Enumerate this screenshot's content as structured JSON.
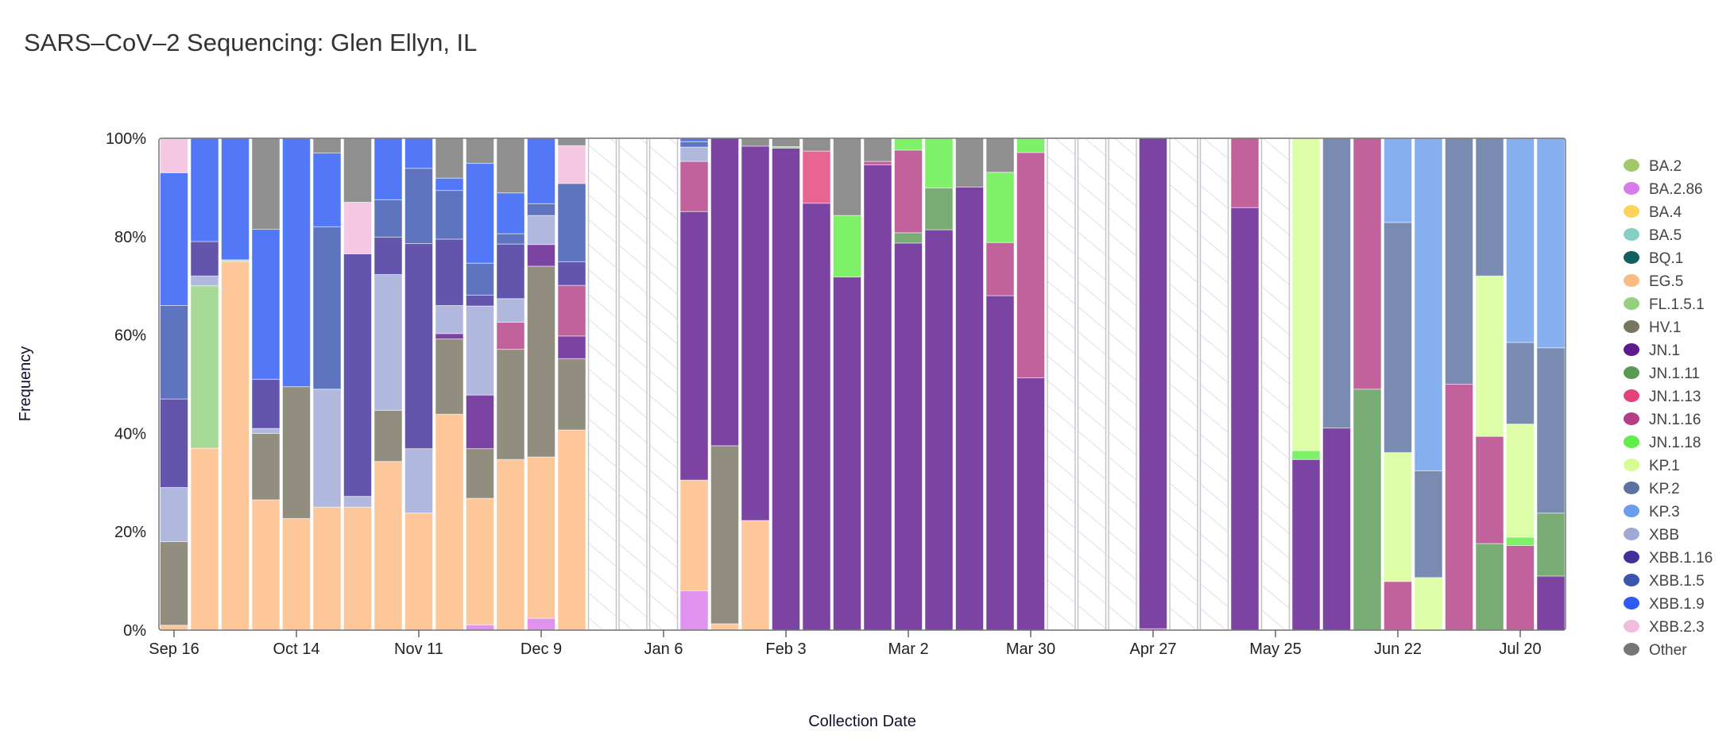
{
  "chart_data": {
    "type": "bar",
    "stacked": true,
    "title": "SARS–CoV–2 Sequencing: Glen Ellyn, IL",
    "xlabel": "Collection Date",
    "ylabel": "Frequency",
    "ylim": [
      0,
      100
    ],
    "yticks": [
      "0%",
      "20%",
      "40%",
      "60%",
      "80%",
      "100%"
    ],
    "xticks": [
      {
        "index": 0,
        "label": "Sep 16"
      },
      {
        "index": 4,
        "label": "Oct 14"
      },
      {
        "index": 8,
        "label": "Nov 11"
      },
      {
        "index": 12,
        "label": "Dec 9"
      },
      {
        "index": 16,
        "label": "Jan 6"
      },
      {
        "index": 20,
        "label": "Feb 3"
      },
      {
        "index": 24,
        "label": "Mar 2"
      },
      {
        "index": 28,
        "label": "Mar 30"
      },
      {
        "index": 32,
        "label": "Apr 27"
      },
      {
        "index": 36,
        "label": "May 25"
      },
      {
        "index": 40,
        "label": "Jun 22"
      },
      {
        "index": 44,
        "label": "Jul 20"
      }
    ],
    "legend_position": "right",
    "legend": [
      {
        "name": "BA.2",
        "color": "#a1c96a"
      },
      {
        "name": "BA.2.86",
        "color": "#d87aea"
      },
      {
        "name": "BA.4",
        "color": "#fdd35c"
      },
      {
        "name": "BA.5",
        "color": "#86cfc6"
      },
      {
        "name": "BQ.1",
        "color": "#135e5e"
      },
      {
        "name": "EG.5",
        "color": "#fdbb84"
      },
      {
        "name": "FL.1.5.1",
        "color": "#94d17f"
      },
      {
        "name": "HV.1",
        "color": "#7a7563"
      },
      {
        "name": "JN.1",
        "color": "#5e1a8e"
      },
      {
        "name": "JN.1.11",
        "color": "#5b9a56"
      },
      {
        "name": "JN.1.13",
        "color": "#e3437a"
      },
      {
        "name": "JN.1.16",
        "color": "#b43f87"
      },
      {
        "name": "JN.1.18",
        "color": "#62ee48"
      },
      {
        "name": "KP.1",
        "color": "#d6fd93"
      },
      {
        "name": "KP.2",
        "color": "#5d72a0"
      },
      {
        "name": "KP.3",
        "color": "#6b9ded"
      },
      {
        "name": "XBB",
        "color": "#9fa9d6"
      },
      {
        "name": "XBB.1.16",
        "color": "#41309a"
      },
      {
        "name": "XBB.1.5",
        "color": "#3b55b0"
      },
      {
        "name": "XBB.1.9",
        "color": "#2d5af5"
      },
      {
        "name": "XBB.2.3",
        "color": "#f2bcdc"
      },
      {
        "name": "Other",
        "color": "#767676"
      }
    ],
    "bars": [
      [
        [
          "EG.5",
          1
        ],
        [
          "HV.1",
          17
        ],
        [
          "XBB",
          11
        ],
        [
          "XBB.1.16",
          18
        ],
        [
          "XBB.1.5",
          19
        ],
        [
          "XBB.1.9",
          27
        ],
        [
          "XBB.2.3",
          7
        ]
      ],
      [
        [
          "EG.5",
          37
        ],
        [
          "FL.1.5.1",
          33
        ],
        [
          "XBB",
          2
        ],
        [
          "XBB.1.16",
          7
        ],
        [
          "XBB.1.9",
          21
        ]
      ],
      [
        [
          "EG.5",
          75
        ],
        [
          "FL.1.5.1",
          0.3
        ],
        [
          "XBB.1.9",
          24.7
        ]
      ],
      [
        [
          "EG.5",
          26.5
        ],
        [
          "HV.1",
          13.5
        ],
        [
          "XBB",
          1
        ],
        [
          "XBB.1.16",
          10
        ],
        [
          "XBB.1.9",
          30.5
        ],
        [
          "Other",
          18.5
        ]
      ],
      [
        [
          "EG.5",
          22.7
        ],
        [
          "HV.1",
          26.8
        ],
        [
          "XBB.1.9",
          50.5
        ]
      ],
      [
        [
          "EG.5",
          25
        ],
        [
          "XBB",
          24
        ],
        [
          "XBB.1.5",
          33
        ],
        [
          "XBB.1.9",
          15
        ],
        [
          "Other",
          3
        ]
      ],
      [
        [
          "EG.5",
          25
        ],
        [
          "XBB",
          2.2
        ],
        [
          "XBB.1.16",
          49.3
        ],
        [
          "XBB.2.3",
          10.5
        ],
        [
          "Other",
          13
        ]
      ],
      [
        [
          "EG.5",
          34.3
        ],
        [
          "HV.1",
          10.4
        ],
        [
          "XBB",
          27.6
        ],
        [
          "XBB.1.16",
          7.6
        ],
        [
          "XBB.1.5",
          7.6
        ],
        [
          "XBB.1.9",
          12.5
        ]
      ],
      [
        [
          "EG.5",
          23.8
        ],
        [
          "XBB",
          13.1
        ],
        [
          "XBB.1.16",
          41.7
        ],
        [
          "XBB.1.5",
          15.3
        ],
        [
          "XBB.1.9",
          6.1
        ]
      ],
      [
        [
          "EG.5",
          43.9
        ],
        [
          "HV.1",
          15.3
        ],
        [
          "JN.1",
          1.1
        ],
        [
          "XBB",
          5.7
        ],
        [
          "XBB.1.16",
          13.5
        ],
        [
          "XBB.1.5",
          9.9
        ],
        [
          "XBB.1.9",
          2.5
        ],
        [
          "Other",
          8.1
        ]
      ],
      [
        [
          "BA.2.86",
          1.1
        ],
        [
          "EG.5",
          25.7
        ],
        [
          "HV.1",
          10.1
        ],
        [
          "JN.1",
          10.9
        ],
        [
          "XBB",
          18.1
        ],
        [
          "XBB.1.16",
          2.2
        ],
        [
          "XBB.1.5",
          6.5
        ],
        [
          "XBB.1.9",
          20.3
        ],
        [
          "Other",
          5.1
        ]
      ],
      [
        [
          "EG.5",
          34.7
        ],
        [
          "HV.1",
          22.4
        ],
        [
          "JN.1.16",
          5.5
        ],
        [
          "XBB",
          4.8
        ],
        [
          "XBB.1.16",
          11.1
        ],
        [
          "XBB.1.5",
          2.1
        ],
        [
          "XBB.1.9",
          8.3
        ],
        [
          "Other",
          11.1
        ]
      ],
      [
        [
          "BA.2.86",
          2.4
        ],
        [
          "EG.5",
          32.8
        ],
        [
          "HV.1",
          38.8
        ],
        [
          "JN.1",
          4.4
        ],
        [
          "XBB",
          5.9
        ],
        [
          "XBB.1.5",
          2.4
        ],
        [
          "XBB.1.9",
          13.3
        ]
      ],
      [
        [
          "EG.5",
          40.7
        ],
        [
          "HV.1",
          14.5
        ],
        [
          "JN.1",
          4.6
        ],
        [
          "JN.1.16",
          10.3
        ],
        [
          "XBB.1.16",
          4.8
        ],
        [
          "XBB.1.5",
          15.9
        ],
        [
          "XBB.2.3",
          7.7
        ],
        [
          "Other",
          1.5
        ]
      ],
      null,
      null,
      null,
      [
        [
          "BA.2.86",
          8
        ],
        [
          "EG.5",
          22.5
        ],
        [
          "JN.1",
          54.6
        ],
        [
          "JN.1.16",
          10.2
        ],
        [
          "XBB",
          2.9
        ],
        [
          "XBB.1.5",
          1.1
        ],
        [
          "XBB.1.9",
          0.7
        ]
      ],
      [
        [
          "EG.5",
          1.3
        ],
        [
          "HV.1",
          36.2
        ],
        [
          "JN.1",
          62.5
        ]
      ],
      [
        [
          "EG.5",
          22.3
        ],
        [
          "JN.1",
          76.1
        ],
        [
          "Other",
          1.6
        ]
      ],
      [
        [
          "JN.1",
          98
        ],
        [
          "JN.1.18",
          0.3
        ],
        [
          "Other",
          1.7
        ]
      ],
      [
        [
          "JN.1",
          86.8
        ],
        [
          "JN.1.13",
          10.6
        ],
        [
          "Other",
          2.6
        ]
      ],
      [
        [
          "JN.1",
          71.8
        ],
        [
          "JN.1.18",
          12.5
        ],
        [
          "Other",
          15.7
        ]
      ],
      [
        [
          "JN.1",
          94.6
        ],
        [
          "JN.1.16",
          0.7
        ],
        [
          "Other",
          4.7
        ]
      ],
      [
        [
          "JN.1",
          78.7
        ],
        [
          "JN.1.11",
          2.1
        ],
        [
          "JN.1.16",
          16.8
        ],
        [
          "JN.1.18",
          2.4
        ]
      ],
      [
        [
          "JN.1",
          81.4
        ],
        [
          "JN.1.11",
          8.5
        ],
        [
          "JN.1.18",
          10.1
        ]
      ],
      [
        [
          "JN.1",
          90.1
        ],
        [
          "Other",
          9.9
        ]
      ],
      [
        [
          "JN.1",
          68
        ],
        [
          "JN.1.16",
          10.8
        ],
        [
          "JN.1.18",
          14.3
        ],
        [
          "Other",
          6.9
        ]
      ],
      [
        [
          "JN.1",
          51.3
        ],
        [
          "JN.1.16",
          45.8
        ],
        [
          "JN.1.18",
          2.9
        ]
      ],
      null,
      null,
      null,
      [
        [
          "JN.1.16",
          0.3
        ],
        [
          "JN.1",
          99.7
        ]
      ],
      null,
      null,
      [
        [
          "JN.1",
          85.9
        ],
        [
          "JN.1.16",
          14.1
        ]
      ],
      null,
      [
        [
          "JN.1",
          34.7
        ],
        [
          "JN.1.18",
          1.8
        ],
        [
          "KP.1",
          63.5
        ]
      ],
      [
        [
          "JN.1",
          41.1
        ],
        [
          "KP.2",
          58.9
        ]
      ],
      [
        [
          "JN.1.11",
          49
        ],
        [
          "JN.1.16",
          51
        ]
      ],
      [
        [
          "JN.1.16",
          9.9
        ],
        [
          "KP.1",
          26.2
        ],
        [
          "KP.2",
          46.8
        ],
        [
          "KP.3",
          17.1
        ]
      ],
      [
        [
          "KP.1",
          10.7
        ],
        [
          "KP.2",
          21.7
        ],
        [
          "KP.3",
          67.6
        ]
      ],
      [
        [
          "JN.1.16",
          50
        ],
        [
          "KP.2",
          50
        ]
      ],
      [
        [
          "JN.1.11",
          17.6
        ],
        [
          "JN.1.16",
          21.8
        ],
        [
          "KP.1",
          32.6
        ],
        [
          "KP.2",
          28
        ]
      ],
      [
        [
          "JN.1.16",
          17.2
        ],
        [
          "JN.1.18",
          1.7
        ],
        [
          "KP.1",
          23
        ],
        [
          "KP.2",
          16.6
        ],
        [
          "KP.3",
          41.5
        ]
      ],
      [
        [
          "JN.1",
          11
        ],
        [
          "JN.1.11",
          12.8
        ],
        [
          "KP.2",
          33.6
        ],
        [
          "KP.3",
          42.6
        ]
      ]
    ]
  }
}
